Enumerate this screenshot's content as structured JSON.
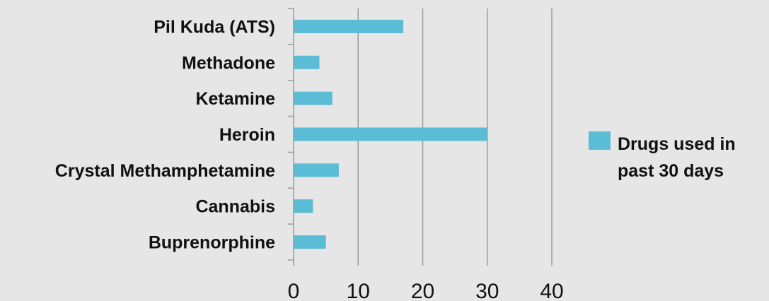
{
  "chart_data": {
    "type": "bar",
    "orientation": "horizontal",
    "categories": [
      "Pil Kuda (ATS)",
      "Methadone",
      "Ketamine",
      "Heroin",
      "Crystal Methamphetamine",
      "Cannabis",
      "Buprenorphine"
    ],
    "series": [
      {
        "name": "Drugs used in past 30 days",
        "name_lines": [
          "Drugs used in",
          "past 30 days"
        ],
        "values": [
          17,
          4,
          6,
          30,
          7,
          3,
          5
        ],
        "color": "#5bbcd6"
      }
    ],
    "xlim": [
      0,
      40
    ],
    "xticks": [
      "0",
      "10",
      "20",
      "30",
      "40"
    ],
    "grid": "vertical",
    "legend_position": "right",
    "title": "",
    "xlabel": "",
    "ylabel": ""
  },
  "colors": {
    "background": "#e6e6e6",
    "gridline": "#9a9a9a",
    "axis": "#9a9a9a",
    "text": "#111111"
  }
}
